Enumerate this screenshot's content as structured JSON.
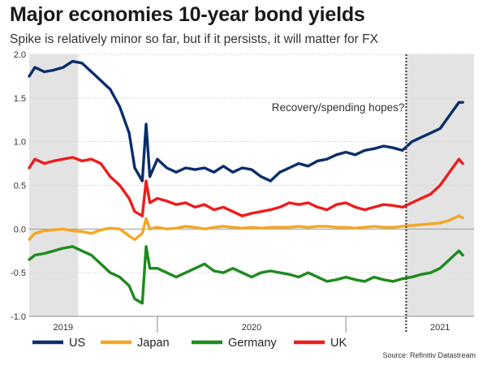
{
  "chart_data": {
    "type": "line",
    "title": "Major economies 10-year bond yields",
    "subtitle": "Spike is relatively minor so far, but if it persists, it will matter for FX",
    "source": "Source: Refinitiv Datastream",
    "annotation": "Recovery/spending hopes?",
    "ylim": [
      -1.0,
      2.0
    ],
    "yticks": [
      "2.0",
      "1.5",
      "1.0",
      "0.5",
      "0.0",
      "-0.5",
      "-1.0"
    ],
    "xlim": [
      2018.82,
      2021.18
    ],
    "xtick_labels": [
      {
        "label": "2019",
        "x": 2019.0
      },
      {
        "label": "2020",
        "x": 2020.0
      },
      {
        "label": "2021",
        "x": 2021.0
      }
    ],
    "year_dividers": [
      2019.5,
      2020.5
    ],
    "shaded_ranges": [
      [
        2018.82,
        2019.08
      ],
      [
        2020.82,
        2021.18
      ]
    ],
    "vline_x": 2020.82,
    "x": [
      2018.82,
      2018.85,
      2018.9,
      2018.95,
      2019.0,
      2019.05,
      2019.1,
      2019.15,
      2019.2,
      2019.25,
      2019.3,
      2019.35,
      2019.38,
      2019.42,
      2019.44,
      2019.46,
      2019.5,
      2019.55,
      2019.6,
      2019.65,
      2019.7,
      2019.75,
      2019.8,
      2019.85,
      2019.9,
      2019.95,
      2020.0,
      2020.05,
      2020.1,
      2020.15,
      2020.2,
      2020.25,
      2020.3,
      2020.35,
      2020.4,
      2020.45,
      2020.5,
      2020.55,
      2020.6,
      2020.65,
      2020.7,
      2020.75,
      2020.8,
      2020.85,
      2020.9,
      2020.95,
      2021.0,
      2021.05,
      2021.1,
      2021.12
    ],
    "series": [
      {
        "name": "US",
        "color": "#0b2e6b",
        "values": [
          1.75,
          1.85,
          1.8,
          1.82,
          1.85,
          1.92,
          1.9,
          1.8,
          1.7,
          1.6,
          1.4,
          1.1,
          0.7,
          0.55,
          1.2,
          0.6,
          0.8,
          0.7,
          0.65,
          0.7,
          0.68,
          0.7,
          0.65,
          0.72,
          0.65,
          0.7,
          0.68,
          0.6,
          0.55,
          0.65,
          0.7,
          0.75,
          0.72,
          0.78,
          0.8,
          0.85,
          0.88,
          0.85,
          0.9,
          0.92,
          0.95,
          0.93,
          0.9,
          1.0,
          1.05,
          1.1,
          1.15,
          1.3,
          1.45,
          1.45
        ]
      },
      {
        "name": "Japan",
        "color": "#f5a623",
        "values": [
          -0.12,
          -0.05,
          -0.02,
          -0.01,
          0.0,
          -0.02,
          -0.03,
          -0.05,
          -0.01,
          0.01,
          0.0,
          -0.08,
          -0.12,
          -0.05,
          0.12,
          0.0,
          0.02,
          0.0,
          0.01,
          0.03,
          0.02,
          0.0,
          0.02,
          0.03,
          0.02,
          0.01,
          0.02,
          0.01,
          0.02,
          0.02,
          0.02,
          0.03,
          0.02,
          0.03,
          0.03,
          0.02,
          0.02,
          0.01,
          0.02,
          0.03,
          0.02,
          0.02,
          0.03,
          0.04,
          0.05,
          0.06,
          0.07,
          0.1,
          0.15,
          0.13
        ]
      },
      {
        "name": "Germany",
        "color": "#1e8a1e",
        "values": [
          -0.35,
          -0.3,
          -0.28,
          -0.25,
          -0.22,
          -0.2,
          -0.25,
          -0.3,
          -0.4,
          -0.5,
          -0.55,
          -0.65,
          -0.8,
          -0.85,
          -0.2,
          -0.45,
          -0.45,
          -0.5,
          -0.55,
          -0.5,
          -0.45,
          -0.4,
          -0.48,
          -0.5,
          -0.45,
          -0.5,
          -0.55,
          -0.5,
          -0.48,
          -0.5,
          -0.52,
          -0.55,
          -0.5,
          -0.55,
          -0.6,
          -0.58,
          -0.55,
          -0.58,
          -0.6,
          -0.55,
          -0.58,
          -0.6,
          -0.57,
          -0.55,
          -0.52,
          -0.5,
          -0.45,
          -0.35,
          -0.25,
          -0.3
        ]
      },
      {
        "name": "UK",
        "color": "#ee1c1c",
        "values": [
          0.7,
          0.8,
          0.75,
          0.78,
          0.8,
          0.82,
          0.78,
          0.8,
          0.75,
          0.6,
          0.5,
          0.35,
          0.2,
          0.15,
          0.55,
          0.3,
          0.35,
          0.32,
          0.28,
          0.3,
          0.25,
          0.28,
          0.22,
          0.25,
          0.2,
          0.15,
          0.18,
          0.2,
          0.22,
          0.25,
          0.3,
          0.28,
          0.3,
          0.25,
          0.22,
          0.28,
          0.3,
          0.25,
          0.22,
          0.25,
          0.28,
          0.27,
          0.25,
          0.3,
          0.35,
          0.4,
          0.5,
          0.65,
          0.8,
          0.75
        ]
      }
    ]
  }
}
